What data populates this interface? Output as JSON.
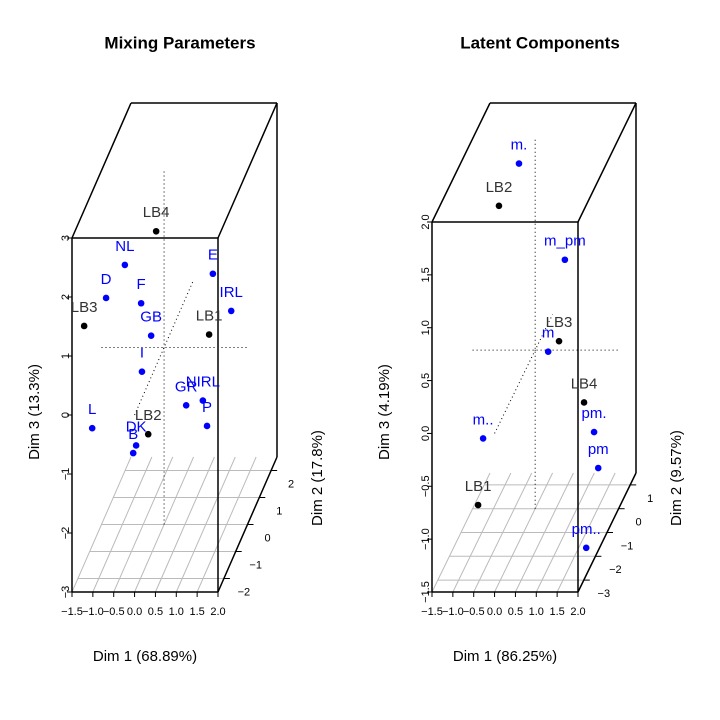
{
  "chart_data": [
    {
      "type": "scatter3d",
      "title": "Mixing Parameters",
      "xlabel": "Dim 1 (68.89%)",
      "ylabel": "Dim 2 (17.8%)",
      "zlabel": "Dim 3 (13.3%)",
      "xlim": [
        -1.5,
        2.0
      ],
      "ylim": [
        -2.5,
        2.5
      ],
      "zlim": [
        -3,
        3
      ],
      "xticks": [
        {
          "value": -1.5,
          "label": "−1.5"
        },
        {
          "value": -1,
          "label": "−1.0"
        },
        {
          "value": -0.5,
          "label": "−0.5"
        },
        {
          "value": 0,
          "label": "0.0"
        },
        {
          "value": 0.5,
          "label": "0.5"
        },
        {
          "value": 1,
          "label": "1.0"
        },
        {
          "value": 1.5,
          "label": "1.5"
        },
        {
          "value": 2,
          "label": "2.0"
        }
      ],
      "yticks": [
        {
          "value": -2,
          "label": "−2"
        },
        {
          "value": -1,
          "label": "−1"
        },
        0,
        1,
        2
      ],
      "zticks": [
        {
          "value": -3,
          "label": "−3"
        },
        {
          "value": -2,
          "label": "−2"
        },
        {
          "value": -1,
          "label": "−1"
        },
        0,
        1,
        2,
        3
      ],
      "grid": true,
      "points": [
        {
          "label": "LB4",
          "x": -0.19,
          "y": 0,
          "z": 1.97,
          "color": "#000000"
        },
        {
          "label": "NL",
          "x": -0.94,
          "y": 0,
          "z": 1.4,
          "color": "#0000ff"
        },
        {
          "label": "E",
          "x": 1.17,
          "y": 0,
          "z": 1.25,
          "color": "#0000ff"
        },
        {
          "label": "D",
          "x": -1.39,
          "y": 0,
          "z": 0.84,
          "color": "#0000ff"
        },
        {
          "label": "F",
          "x": -0.55,
          "y": 0,
          "z": 0.75,
          "color": "#0000ff"
        },
        {
          "label": "IRL",
          "x": 1.61,
          "y": 0,
          "z": 0.62,
          "color": "#0000ff"
        },
        {
          "label": "LB3",
          "x": -1.35,
          "y": -2,
          "z": 1.28,
          "color": "#000000"
        },
        {
          "label": "GB",
          "x": -0.31,
          "y": 0,
          "z": 0.2,
          "color": "#0000ff"
        },
        {
          "label": "LB1",
          "x": 1.08,
          "y": 0,
          "z": 0.22,
          "color": "#000000"
        },
        {
          "label": "I",
          "x": -0.53,
          "y": 0,
          "z": -0.41,
          "color": "#0000ff"
        },
        {
          "label": "GR",
          "x": 0.53,
          "y": 0,
          "z": -0.98,
          "color": "#0000ff"
        },
        {
          "label": "NIRL",
          "x": 0.93,
          "y": 0,
          "z": -0.9,
          "color": "#0000ff"
        },
        {
          "label": "P",
          "x": 1.03,
          "y": 0,
          "z": -1.33,
          "color": "#0000ff"
        },
        {
          "label": "LB2",
          "x": -0.38,
          "y": 0,
          "z": -1.47,
          "color": "#000000"
        },
        {
          "label": "DK",
          "x": -0.67,
          "y": 0,
          "z": -1.66,
          "color": "#0000ff"
        },
        {
          "label": "B",
          "x": -0.74,
          "y": 0,
          "z": -1.79,
          "color": "#0000ff"
        },
        {
          "label": "L",
          "x": -1.44,
          "y": -1,
          "z": -0.91,
          "color": "#0000ff"
        }
      ]
    },
    {
      "type": "scatter3d",
      "title": "Latent Components",
      "xlabel": "Dim 1 (86.25%)",
      "ylabel": "Dim 2 (9.57%)",
      "zlabel": "Dim 3 (4.19%)",
      "xlim": [
        -1.5,
        2.0
      ],
      "ylim": [
        -3.5,
        1.5
      ],
      "zlim": [
        -1.5,
        2.0
      ],
      "xticks": [
        {
          "value": -1.5,
          "label": "−1.5"
        },
        {
          "value": -1,
          "label": "−1.0"
        },
        {
          "value": -0.5,
          "label": "−0.5"
        },
        {
          "value": 0,
          "label": "0.0"
        },
        {
          "value": 0.5,
          "label": "0.5"
        },
        {
          "value": 1,
          "label": "1.0"
        },
        {
          "value": 1.5,
          "label": "1.5"
        },
        {
          "value": 2,
          "label": "2.0"
        }
      ],
      "yticks": [
        {
          "value": -3,
          "label": "−3"
        },
        {
          "value": -2,
          "label": "−2"
        },
        {
          "value": -1,
          "label": "−1"
        },
        0,
        1
      ],
      "zticks": [
        {
          "value": -1.5,
          "label": "−1.5"
        },
        {
          "value": -1,
          "label": "−1.0"
        },
        {
          "value": -0.5,
          "label": "−0.5"
        },
        {
          "value": 0,
          "label": "0.0"
        },
        0.5,
        {
          "value": 1,
          "label": "1.0"
        },
        1.5,
        {
          "value": 2,
          "label": "2.0"
        }
      ],
      "grid": true,
      "points": [
        {
          "label": "m.",
          "x": -0.11,
          "y": -1,
          "z": 1.99,
          "color": "#0000ff"
        },
        {
          "label": "LB2",
          "x": -0.59,
          "y": -1,
          "z": 1.59,
          "color": "#000000"
        },
        {
          "label": "m_pm",
          "x": 0.99,
          "y": -1,
          "z": 1.08,
          "color": "#0000ff"
        },
        {
          "label": "LB3",
          "x": 0.85,
          "y": -1,
          "z": 0.31,
          "color": "#000000"
        },
        {
          "label": "m",
          "x": 0.59,
          "y": -1,
          "z": 0.21,
          "color": "#0000ff"
        },
        {
          "label": "LB4",
          "x": 1.45,
          "y": -1,
          "z": -0.27,
          "color": "#000000"
        },
        {
          "label": "m..",
          "x": -0.97,
          "y": -1,
          "z": -0.61,
          "color": "#0000ff"
        },
        {
          "label": "pm.",
          "x": 1.69,
          "y": -1,
          "z": -0.55,
          "color": "#0000ff"
        },
        {
          "label": "pm",
          "x": 1.79,
          "y": -1,
          "z": -0.89,
          "color": "#0000ff"
        },
        {
          "label": "LB1",
          "x": -1.09,
          "y": -1,
          "z": -1.24,
          "color": "#000000"
        },
        {
          "label": "pm..",
          "x": 1.78,
          "y": -2,
          "z": -1.42,
          "color": "#0000ff"
        }
      ]
    }
  ]
}
